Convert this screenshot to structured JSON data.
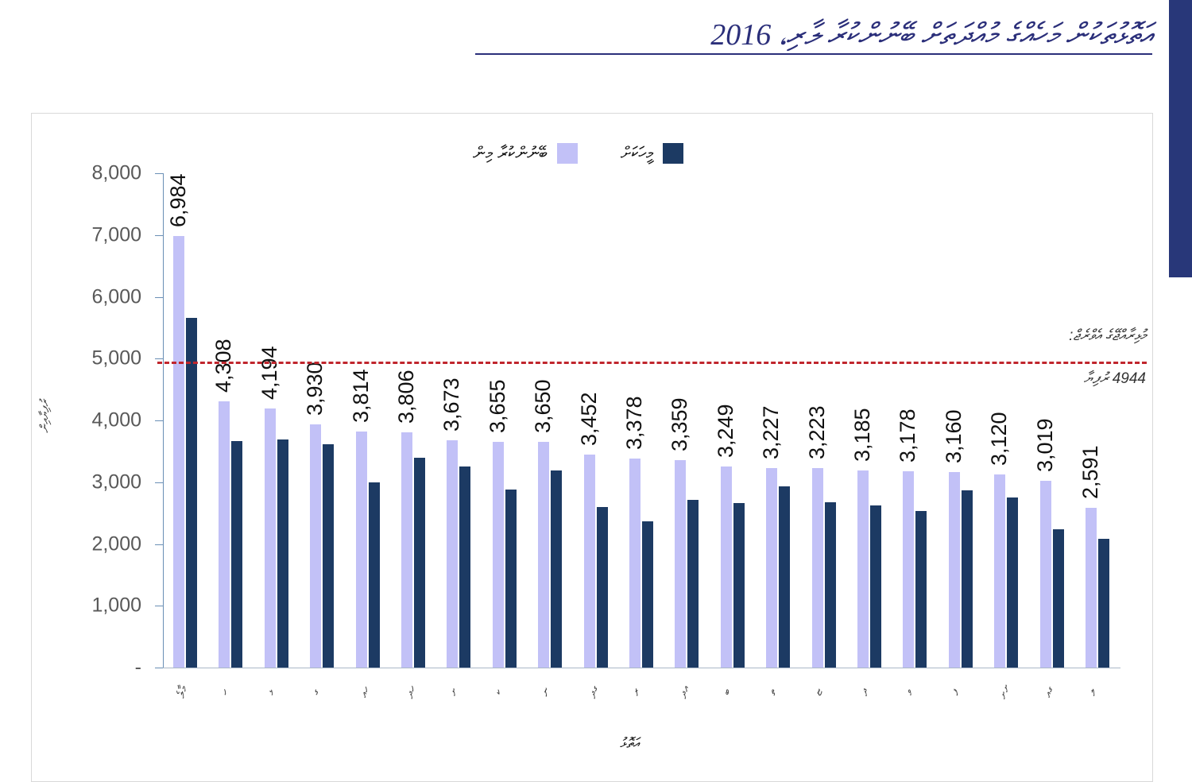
{
  "header": {
    "title": "އަތޮޅުތަކުން މަހެއްގެ މުއްދަތަށް ބޭނުންކުރާ ލާރި، 2016",
    "title_color": "#2b2f7a",
    "side_bar_color": "#283779"
  },
  "legend": {
    "items": [
      {
        "label": "ބޭނުންކުރާ މިން",
        "color": "#c2c1f7"
      },
      {
        "label": "މީހަކަށް",
        "color": "#1c3a63"
      }
    ]
  },
  "average_line": {
    "value": 4944,
    "caption_top": "މުޅިރާއްޖޭގެ އެވްރެޖް:",
    "caption_bottom": "4944 ރުފިޔާ",
    "color": "#c0262d"
  },
  "axes": {
    "y_title": "ރުފިޔާއިން",
    "x_title": "އަތޮޅު",
    "y_ticks": [
      "-",
      "1,000",
      "2,000",
      "3,000",
      "4,000",
      "5,000",
      "6,000",
      "7,000",
      "8,000"
    ]
  },
  "chart_data": {
    "type": "bar",
    "title": "އަތޮޅުތަކުން މަހެއްގެ މުއްދަތަށް ބޭނުންކުރާ ލާރި، 2016",
    "xlabel": "އަތޮޅު",
    "ylabel": "ރުފިޔާއިން",
    "ylim": [
      0,
      8000
    ],
    "y_tick_step": 1000,
    "grid": false,
    "legend_position": "top",
    "categories": [
      "މާލެ",
      "ހ",
      "ޅ",
      "ގ",
      "ހއ",
      "ހދ",
      "ށ",
      "ކ",
      "ނ",
      "ގދ",
      "ރ",
      "އދ",
      "ބ",
      "ތ",
      "ޏ",
      "ދ",
      "ވ",
      "ފ",
      "ށށ",
      "ގއ",
      "ލ"
    ],
    "series": [
      {
        "name": "ބޭނުންކުރާ މިން",
        "color": "#c2c1f7",
        "values": [
          6984,
          4308,
          4194,
          3930,
          3814,
          3806,
          3673,
          3655,
          3650,
          3452,
          3378,
          3359,
          3249,
          3227,
          3223,
          3185,
          3178,
          3160,
          3120,
          3019,
          2591
        ],
        "labels": [
          "6,984",
          "4,308",
          "4,194",
          "3,930",
          "3,814",
          "3,806",
          "3,673",
          "3,655",
          "3,650",
          "3,452",
          "3,378",
          "3,359",
          "3,249",
          "3,227",
          "3,223",
          "3,185",
          "3,178",
          "3,160",
          "3,120",
          "3,019",
          "2,591"
        ]
      },
      {
        "name": "މީހަކަށް",
        "color": "#1c3a63",
        "values": [
          5660,
          3670,
          3690,
          3615,
          3000,
          3400,
          3250,
          2880,
          3190,
          2600,
          2370,
          2710,
          2660,
          2930,
          2680,
          2620,
          2530,
          2870,
          2750,
          2240,
          2080
        ]
      }
    ],
    "annotations": [
      {
        "type": "hline",
        "value": 4944,
        "text": "މުޅިރާއްޖޭގެ އެވްރެޖް: 4944 ރުފިޔާ",
        "style": "dashed",
        "color": "#c0262d"
      }
    ]
  }
}
